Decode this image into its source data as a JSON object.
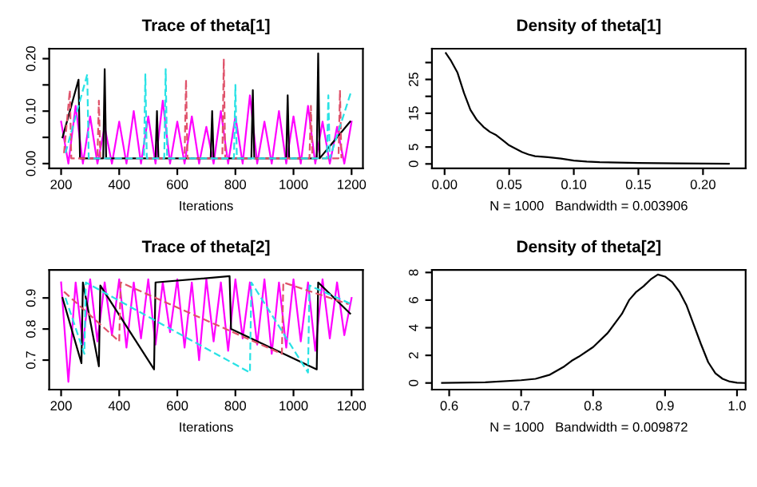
{
  "chart_data": [
    {
      "type": "line",
      "title": "Trace of theta[1]",
      "xlabel": "Iterations",
      "xlim": [
        159,
        1239
      ],
      "xticks": [
        200,
        400,
        600,
        800,
        1000,
        1200
      ],
      "ylim": [
        -0.009,
        0.219
      ],
      "yticks": [
        {
          "value": 0,
          "label": "0.00"
        },
        {
          "value": 0.05,
          "label": null
        },
        {
          "value": 0.1,
          "label": "0.10"
        },
        {
          "value": 0.15,
          "label": null
        },
        {
          "value": 0.2,
          "label": "0.20"
        }
      ],
      "series": [
        {
          "color": "#ff00ff",
          "line_style": "solid",
          "x": [
            200,
            225,
            250,
            275,
            300,
            325,
            350,
            375,
            400,
            425,
            450,
            475,
            500,
            525,
            550,
            575,
            600,
            625,
            650,
            675,
            700,
            725,
            750,
            775,
            800,
            825,
            850,
            875,
            900,
            925,
            950,
            975,
            1000,
            1025,
            1050,
            1075,
            1100,
            1125,
            1150,
            1175,
            1200
          ],
          "values": [
            0.08,
            0.0,
            0.11,
            0.0,
            0.09,
            0.0,
            0.07,
            0.0,
            0.08,
            0.0,
            0.1,
            0.0,
            0.09,
            0.0,
            0.12,
            0.0,
            0.08,
            0.0,
            0.09,
            0.0,
            0.07,
            0.0,
            0.1,
            0.0,
            0.09,
            0.0,
            0.13,
            0.0,
            0.08,
            0.0,
            0.1,
            0.0,
            0.09,
            0.0,
            0.11,
            0.0,
            0.08,
            0.0,
            0.07,
            0.0,
            0.08
          ]
        },
        {
          "color": "#000000",
          "line_style": "solid",
          "x": [
            205,
            260,
            265,
            345,
            350,
            355,
            525,
            530,
            535,
            715,
            720,
            725,
            855,
            860,
            865,
            975,
            980,
            985,
            1080,
            1085,
            1090,
            1195
          ],
          "values": [
            0.05,
            0.16,
            0.01,
            0.01,
            0.18,
            0.01,
            0.01,
            0.1,
            0.01,
            0.01,
            0.1,
            0.01,
            0.01,
            0.14,
            0.01,
            0.01,
            0.13,
            0.01,
            0.01,
            0.21,
            0.01,
            0.08
          ]
        },
        {
          "color": "#df536b",
          "line_style": "dashed",
          "x": [
            210,
            230,
            235,
            325,
            330,
            335,
            625,
            630,
            635,
            755,
            760,
            765,
            1055,
            1060,
            1065,
            1155,
            1160,
            1165
          ],
          "values": [
            0.02,
            0.14,
            0.01,
            0.01,
            0.12,
            0.01,
            0.01,
            0.16,
            0.01,
            0.01,
            0.2,
            0.01,
            0.01,
            0.11,
            0.01,
            0.01,
            0.14,
            0.01
          ]
        },
        {
          "color": "#28e2e5",
          "line_style": "dashed",
          "x": [
            215,
            290,
            295,
            485,
            490,
            495,
            555,
            560,
            565,
            795,
            800,
            805,
            1115,
            1120,
            1125,
            1200
          ],
          "values": [
            0.02,
            0.17,
            0.01,
            0.01,
            0.17,
            0.01,
            0.01,
            0.18,
            0.01,
            0.01,
            0.15,
            0.01,
            0.01,
            0.13,
            0.01,
            0.14
          ]
        }
      ]
    },
    {
      "type": "line",
      "title": "Density of theta[1]",
      "xlabel": "N = 1000   Bandwidth = 0.003906",
      "xlim": [
        -0.0098,
        0.233
      ],
      "xticks": [
        {
          "value": 0,
          "label": "0.00"
        },
        {
          "value": 0.05,
          "label": "0.05"
        },
        {
          "value": 0.1,
          "label": "0.10"
        },
        {
          "value": 0.15,
          "label": "0.15"
        },
        {
          "value": 0.2,
          "label": "0.20"
        }
      ],
      "ylim": [
        -1.3,
        34.1
      ],
      "yticks": [
        0,
        5,
        {
          "value": 10,
          "label": null
        },
        15,
        {
          "value": 20,
          "label": null
        },
        25,
        {
          "value": 30,
          "label": null
        }
      ],
      "series": [
        {
          "color": "#000000",
          "line_style": "solid",
          "x": [
            0.001,
            0.005,
            0.01,
            0.015,
            0.02,
            0.025,
            0.03,
            0.035,
            0.04,
            0.045,
            0.05,
            0.055,
            0.06,
            0.065,
            0.07,
            0.08,
            0.09,
            0.1,
            0.11,
            0.12,
            0.15,
            0.18,
            0.22
          ],
          "values": [
            32.8,
            30.5,
            27,
            21,
            16,
            13,
            11,
            9.5,
            8.5,
            7,
            5.5,
            4.5,
            3.5,
            2.8,
            2.3,
            2.0,
            1.6,
            1.0,
            0.7,
            0.5,
            0.3,
            0.15,
            0.05
          ]
        }
      ]
    },
    {
      "type": "line",
      "title": "Trace of theta[2]",
      "xlabel": "Iterations",
      "xlim": [
        159,
        1239
      ],
      "xticks": [
        200,
        400,
        600,
        800,
        1000,
        1200
      ],
      "ylim": [
        0.605,
        0.99
      ],
      "yticks": [
        0.7,
        0.8,
        0.9
      ],
      "series": [
        {
          "color": "#ff00ff",
          "line_style": "solid",
          "x": [
            200,
            225,
            250,
            275,
            300,
            325,
            350,
            375,
            400,
            425,
            450,
            475,
            500,
            525,
            550,
            575,
            600,
            625,
            650,
            675,
            700,
            725,
            750,
            775,
            800,
            825,
            850,
            875,
            900,
            925,
            950,
            975,
            1000,
            1025,
            1050,
            1075,
            1100,
            1125,
            1150,
            1175,
            1200
          ],
          "values": [
            0.95,
            0.63,
            0.95,
            0.75,
            0.96,
            0.76,
            0.95,
            0.78,
            0.96,
            0.74,
            0.95,
            0.77,
            0.96,
            0.75,
            0.95,
            0.79,
            0.96,
            0.74,
            0.95,
            0.7,
            0.96,
            0.76,
            0.95,
            0.73,
            0.96,
            0.77,
            0.95,
            0.75,
            0.96,
            0.72,
            0.95,
            0.74,
            0.96,
            0.76,
            0.95,
            0.73,
            0.96,
            0.77,
            0.95,
            0.78,
            0.9
          ]
        },
        {
          "color": "#000000",
          "line_style": "solid",
          "x": [
            205,
            270,
            275,
            330,
            335,
            520,
            525,
            780,
            785,
            1080,
            1085,
            1195
          ],
          "values": [
            0.9,
            0.69,
            0.95,
            0.68,
            0.94,
            0.67,
            0.95,
            0.97,
            0.8,
            0.67,
            0.95,
            0.85
          ]
        },
        {
          "color": "#df536b",
          "line_style": "dashed",
          "x": [
            210,
            400,
            405,
            960,
            965,
            1190
          ],
          "values": [
            0.92,
            0.76,
            0.95,
            0.72,
            0.95,
            0.88
          ]
        },
        {
          "color": "#28e2e5",
          "line_style": "dashed",
          "x": [
            215,
            280,
            285,
            850,
            855,
            1050,
            1055,
            1200
          ],
          "values": [
            0.9,
            0.72,
            0.95,
            0.66,
            0.95,
            0.66,
            0.94,
            0.88
          ]
        }
      ]
    },
    {
      "type": "line",
      "title": "Density of theta[2]",
      "xlabel": "N = 1000   Bandwidth = 0.009872",
      "xlim": [
        0.576,
        1.012
      ],
      "xticks": [
        0.6,
        0.7,
        0.8,
        0.9,
        {
          "value": 1.0,
          "label": "1.0"
        }
      ],
      "ylim": [
        -0.48,
        8.18
      ],
      "yticks": [
        0,
        2,
        4,
        6,
        8
      ],
      "series": [
        {
          "color": "#000000",
          "line_style": "solid",
          "x": [
            0.59,
            0.65,
            0.7,
            0.72,
            0.74,
            0.76,
            0.77,
            0.78,
            0.8,
            0.82,
            0.84,
            0.85,
            0.86,
            0.87,
            0.88,
            0.89,
            0.9,
            0.91,
            0.92,
            0.93,
            0.94,
            0.95,
            0.96,
            0.97,
            0.98,
            0.99,
            1.0,
            1.01
          ],
          "values": [
            0,
            0.05,
            0.2,
            0.3,
            0.6,
            1.2,
            1.6,
            1.9,
            2.6,
            3.6,
            5.0,
            6.0,
            6.6,
            7.0,
            7.5,
            7.85,
            7.7,
            7.3,
            6.6,
            5.6,
            4.2,
            2.8,
            1.5,
            0.7,
            0.3,
            0.1,
            0.02,
            0
          ]
        }
      ]
    }
  ]
}
